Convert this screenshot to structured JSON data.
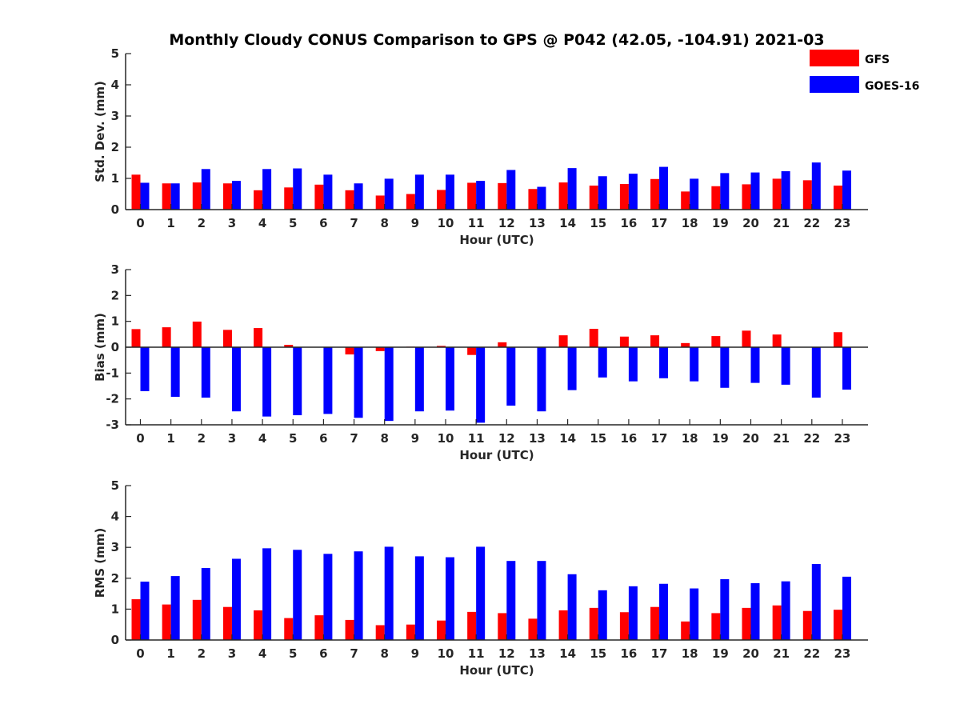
{
  "colors": {
    "GFS": "#ff0000",
    "GOES-16": "#0000ff",
    "axis": "#262626"
  },
  "chart_data": {
    "title": "Monthly Cloudy CONUS Comparison to GPS @ P042 (42.05, -104.91) 2021-03",
    "legend": {
      "placement": "top-right",
      "entries": [
        "GFS",
        "GOES-16"
      ]
    },
    "panels": [
      {
        "type": "bar",
        "xlabel": "Hour (UTC)",
        "ylabel": "Std. Dev. (mm)",
        "ylim": [
          0,
          5
        ],
        "yticks": [
          "0",
          "1",
          "2",
          "3",
          "4",
          "5"
        ],
        "categories": [
          "0",
          "1",
          "2",
          "3",
          "4",
          "5",
          "6",
          "7",
          "8",
          "9",
          "10",
          "11",
          "12",
          "13",
          "14",
          "15",
          "16",
          "17",
          "18",
          "19",
          "20",
          "21",
          "22",
          "23"
        ],
        "series": [
          {
            "name": "GFS",
            "values": [
              1.12,
              0.84,
              0.87,
              0.84,
              0.62,
              0.71,
              0.8,
              0.62,
              0.45,
              0.5,
              0.63,
              0.86,
              0.85,
              0.66,
              0.87,
              0.77,
              0.82,
              0.98,
              0.58,
              0.75,
              0.81,
              0.99,
              0.94,
              0.77
            ]
          },
          {
            "name": "GOES-16",
            "values": [
              0.86,
              0.84,
              1.3,
              0.92,
              1.3,
              1.32,
              1.12,
              0.84,
              0.99,
              1.12,
              1.12,
              0.92,
              1.27,
              0.73,
              1.33,
              1.07,
              1.15,
              1.37,
              0.99,
              1.17,
              1.19,
              1.23,
              1.51,
              1.25
            ]
          }
        ]
      },
      {
        "type": "bar",
        "xlabel": "Hour (UTC)",
        "ylabel": "Bias (mm)",
        "ylim": [
          -3,
          3
        ],
        "yticks": [
          "-3",
          "-2",
          "-1",
          "0",
          "1",
          "2",
          "3"
        ],
        "categories": [
          "0",
          "1",
          "2",
          "3",
          "4",
          "5",
          "6",
          "7",
          "8",
          "9",
          "10",
          "11",
          "12",
          "13",
          "14",
          "15",
          "16",
          "17",
          "18",
          "19",
          "20",
          "21",
          "22",
          "23"
        ],
        "series": [
          {
            "name": "GFS",
            "values": [
              0.7,
              0.77,
              0.99,
              0.67,
              0.74,
              0.09,
              0.0,
              -0.28,
              -0.15,
              0.02,
              0.05,
              -0.3,
              0.19,
              0.0,
              0.46,
              0.71,
              0.41,
              0.46,
              0.16,
              0.43,
              0.64,
              0.49,
              0.0,
              0.58
            ]
          },
          {
            "name": "GOES-16",
            "values": [
              -1.7,
              -1.92,
              -1.95,
              -2.48,
              -2.68,
              -2.63,
              -2.58,
              -2.73,
              -2.85,
              -2.48,
              -2.45,
              -2.92,
              -2.26,
              -2.48,
              -1.66,
              -1.17,
              -1.32,
              -1.2,
              -1.32,
              -1.57,
              -1.38,
              -1.45,
              -1.95,
              -1.64
            ]
          }
        ]
      },
      {
        "type": "bar",
        "xlabel": "Hour (UTC)",
        "ylabel": "RMS (mm)",
        "ylim": [
          0,
          5
        ],
        "yticks": [
          "0",
          "1",
          "2",
          "3",
          "4",
          "5"
        ],
        "categories": [
          "0",
          "1",
          "2",
          "3",
          "4",
          "5",
          "6",
          "7",
          "8",
          "9",
          "10",
          "11",
          "12",
          "13",
          "14",
          "15",
          "16",
          "17",
          "18",
          "19",
          "20",
          "21",
          "22",
          "23"
        ],
        "series": [
          {
            "name": "GFS",
            "values": [
              1.32,
              1.15,
              1.3,
              1.07,
              0.96,
              0.71,
              0.8,
              0.65,
              0.48,
              0.5,
              0.63,
              0.91,
              0.87,
              0.69,
              0.96,
              1.04,
              0.9,
              1.07,
              0.6,
              0.87,
              1.04,
              1.12,
              0.94,
              0.98
            ]
          },
          {
            "name": "GOES-16",
            "values": [
              1.89,
              2.07,
              2.33,
              2.63,
              2.97,
              2.92,
              2.79,
              2.87,
              3.02,
              2.71,
              2.68,
              3.02,
              2.56,
              2.56,
              2.13,
              1.61,
              1.74,
              1.82,
              1.67,
              1.97,
              1.84,
              1.9,
              2.46,
              2.05
            ]
          }
        ]
      }
    ]
  }
}
